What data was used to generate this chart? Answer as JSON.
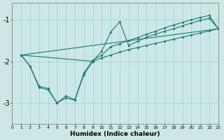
{
  "xlabel": "Humidex (Indice chaleur)",
  "xlim": [
    0,
    23
  ],
  "ylim": [
    -3.5,
    -0.6
  ],
  "yticks": [
    -3,
    -2,
    -1
  ],
  "xticks": [
    0,
    1,
    2,
    3,
    4,
    5,
    6,
    7,
    8,
    9,
    10,
    11,
    12,
    13,
    14,
    15,
    16,
    17,
    18,
    19,
    20,
    21,
    22,
    23
  ],
  "bg_color": "#cce8e6",
  "grid_color": "#aacfcc",
  "line_color": "#1a7a6e",
  "lines": [
    {
      "x": [
        1,
        2,
        3,
        4,
        5,
        6,
        7,
        8,
        9,
        10,
        11,
        12,
        13,
        14,
        15,
        16,
        17,
        18,
        19,
        20,
        21,
        22,
        23
      ],
      "y": [
        -1.85,
        -2.12,
        -2.63,
        -2.68,
        -3.0,
        -2.88,
        -2.93,
        -2.32,
        -2.0,
        -1.92,
        -1.85,
        -1.78,
        -1.72,
        -1.67,
        -1.62,
        -1.57,
        -1.52,
        -1.47,
        -1.42,
        -1.37,
        -1.32,
        -1.27,
        -1.22
      ]
    },
    {
      "x": [
        1,
        9,
        10,
        11,
        12,
        13,
        14,
        15,
        16,
        17,
        18,
        19,
        20,
        21,
        22,
        23
      ],
      "y": [
        -1.85,
        -2.0,
        -1.75,
        -1.3,
        -1.05,
        -1.62,
        -1.52,
        -1.42,
        -1.35,
        -1.28,
        -1.22,
        -1.15,
        -1.08,
        -1.02,
        -0.97,
        -1.22
      ]
    },
    {
      "x": [
        1,
        2,
        3,
        4,
        5,
        6,
        7,
        8,
        9,
        10,
        11,
        12,
        13,
        14,
        15,
        16,
        17,
        18,
        19,
        20,
        21,
        22,
        23
      ],
      "y": [
        -1.85,
        -2.12,
        -2.6,
        -2.65,
        -3.0,
        -2.83,
        -2.92,
        -2.28,
        -1.97,
        -1.85,
        -1.65,
        -1.58,
        -1.5,
        -1.43,
        -1.35,
        -1.28,
        -1.2,
        -1.13,
        -1.07,
        -1.0,
        -0.95,
        -0.9,
        -1.22
      ]
    },
    {
      "x": [
        1,
        23
      ],
      "y": [
        -1.85,
        -1.22
      ]
    }
  ]
}
